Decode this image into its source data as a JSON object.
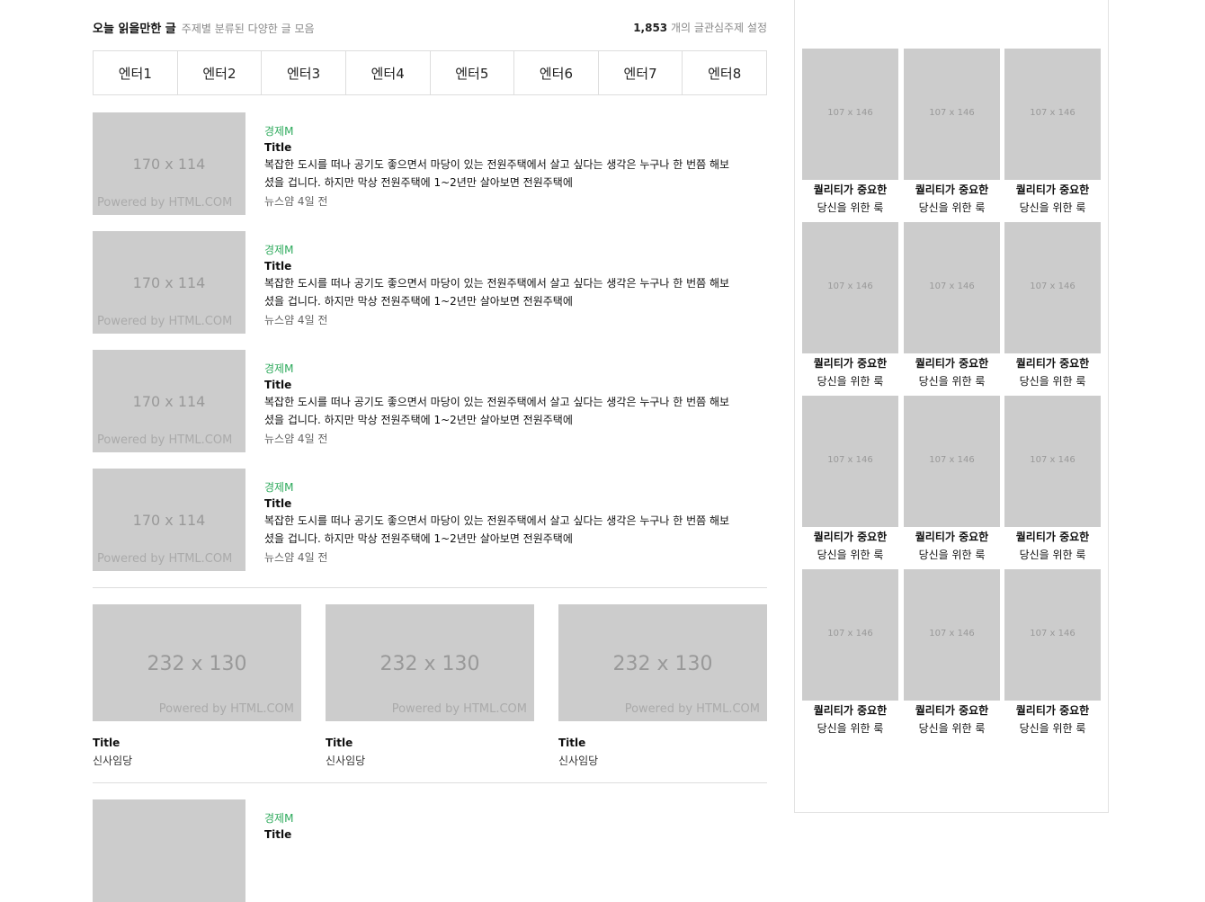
{
  "header": {
    "title": "오늘 읽을만한 글",
    "subtitle": "주제별 분류된 다양한 글 모음",
    "count": "1,853",
    "count_suffix": "개의 글",
    "settings": "관심주제 설정"
  },
  "tabs": [
    "엔터1",
    "엔터2",
    "엔터3",
    "엔터4",
    "엔터5",
    "엔터6",
    "엔터7",
    "엔터8"
  ],
  "articles": [
    {
      "image": "170 x 114",
      "powered": "Powered by HTML.COM",
      "category": "경제M",
      "title": "Title",
      "desc": "복잡한 도시를 떠나 공기도 좋으면서 마당이 있는 전원주택에서 살고 싶다는 생각은 누구나 한 번쯤 해보셨을 겁니다. 하지만 막상 전원주택에 1~2년만 살아보면 전원주택에",
      "meta": "뉴스얌 4일 전"
    },
    {
      "image": "170 x 114",
      "powered": "Powered by HTML.COM",
      "category": "경제M",
      "title": "Title",
      "desc": "복잡한 도시를 떠나 공기도 좋으면서 마당이 있는 전원주택에서 살고 싶다는 생각은 누구나 한 번쯤 해보셨을 겁니다. 하지만 막상 전원주택에 1~2년만 살아보면 전원주택에",
      "meta": "뉴스얌 4일 전"
    },
    {
      "image": "170 x 114",
      "powered": "Powered by HTML.COM",
      "category": "경제M",
      "title": "Title",
      "desc": "복잡한 도시를 떠나 공기도 좋으면서 마당이 있는 전원주택에서 살고 싶다는 생각은 누구나 한 번쯤 해보셨을 겁니다. 하지만 막상 전원주택에 1~2년만 살아보면 전원주택에",
      "meta": "뉴스얌 4일 전"
    },
    {
      "image": "170 x 114",
      "powered": "Powered by HTML.COM",
      "category": "경제M",
      "title": "Title",
      "desc": "복잡한 도시를 떠나 공기도 좋으면서 마당이 있는 전원주택에서 살고 싶다는 생각은 누구나 한 번쯤 해보셨을 겁니다. 하지만 막상 전원주택에 1~2년만 살아보면 전원주택에",
      "meta": "뉴스얌 4일 전"
    }
  ],
  "cards": [
    {
      "image": "232 x 130",
      "powered": "Powered by HTML.COM",
      "title": "Title",
      "sub": "신사임당"
    },
    {
      "image": "232 x 130",
      "powered": "Powered by HTML.COM",
      "title": "Title",
      "sub": "신사임당"
    },
    {
      "image": "232 x 130",
      "powered": "Powered by HTML.COM",
      "title": "Title",
      "sub": "신사임당"
    }
  ],
  "last_article": {
    "category": "경제M",
    "title": "Title"
  },
  "books": {
    "image": "107 x 146",
    "line1": "퀄리티가 중요한",
    "line2": "당신을 위한 룩",
    "count": 12
  },
  "colors": {
    "accent": "#2eaa5c",
    "placeholder": "#cccccc"
  }
}
